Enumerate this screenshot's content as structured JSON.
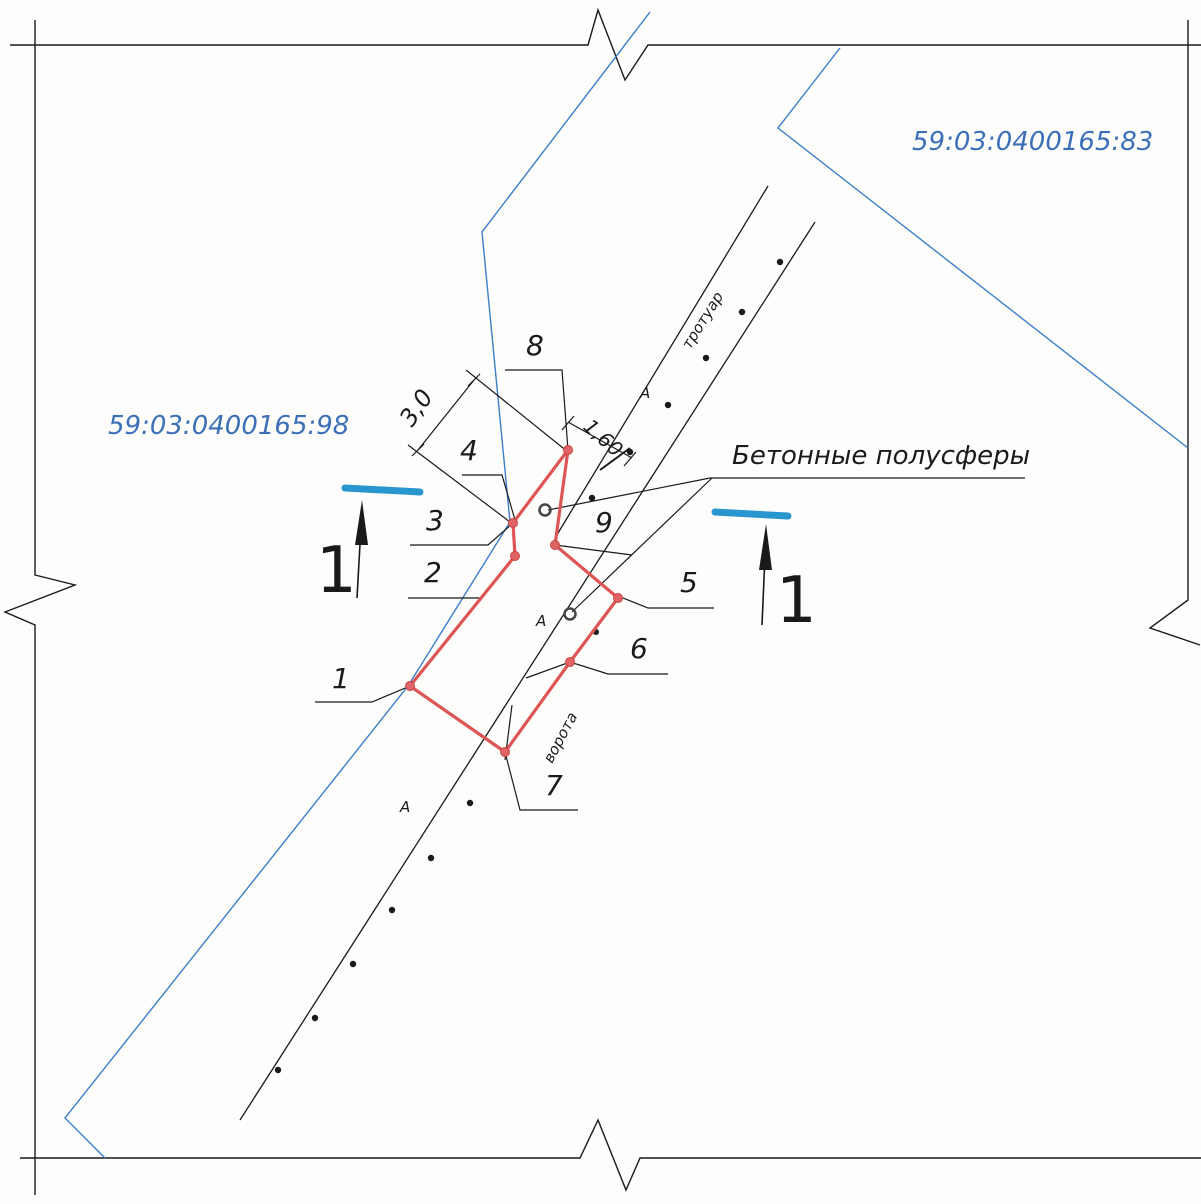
{
  "parcels": {
    "left_cadastral": "59:03:0400165:98",
    "right_cadastral": "59:03:0400165:83"
  },
  "colors": {
    "boundary_line": "#3b7fc8",
    "cadastral_text": "#3b6fb8",
    "site_outline": "#dd5555",
    "section_marker": "#2a96d0",
    "ink": "#1a1a1a"
  },
  "points": {
    "p1": "1",
    "p2": "2",
    "p3": "3",
    "p4": "4",
    "p5": "5",
    "p6": "6",
    "p7": "7",
    "p8": "8",
    "p9": "9"
  },
  "labels": {
    "sidewalk": "тротуар",
    "gate": "ворота",
    "concrete_hemispheres": "Бетонные полусферы",
    "mark_a": "А"
  },
  "dimensions": {
    "width_3": "3,0",
    "width_160": "1,60"
  },
  "section": {
    "left": "1",
    "right": "1"
  }
}
